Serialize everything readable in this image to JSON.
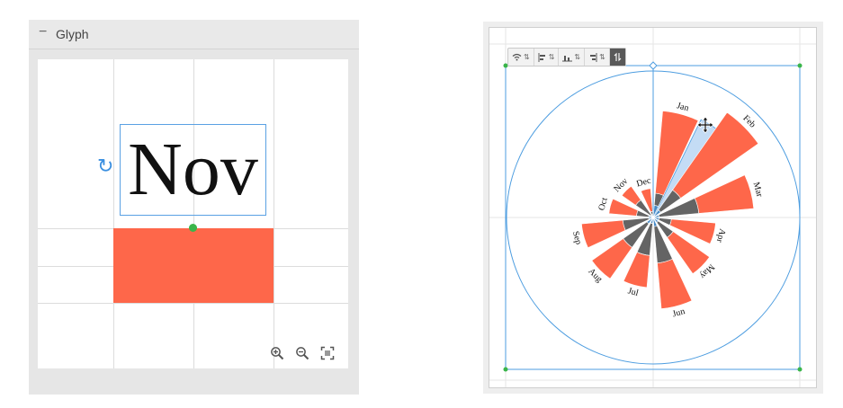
{
  "glyph_panel": {
    "collapse_symbol": "−",
    "title": "Glyph",
    "glyph_text": "Nov",
    "rect_color": "#fe674a",
    "icons": [
      "rotate-icon",
      "zoom-in-icon",
      "zoom-out-icon",
      "fit-to-screen-icon"
    ]
  },
  "toolbar": {
    "icons": [
      "wifi-icon",
      "align-left-icon",
      "align-bottom-icon",
      "align-right-icon",
      "swap-vertical-icon"
    ],
    "caret": "⇅"
  },
  "chart_data": {
    "type": "radial-bar",
    "categories": [
      "Jan",
      "Feb",
      "Mar",
      "Apr",
      "May",
      "Jun",
      "Jul",
      "Aug",
      "Sep",
      "Oct",
      "Nov",
      "Dec"
    ],
    "series": [
      {
        "values": [
          8,
          6,
          4,
          4,
          4,
          6,
          4,
          5,
          3,
          3,
          2,
          2
        ]
      },
      {
        "values": [
          16,
          22,
          30,
          12,
          16,
          30,
          25,
          24,
          20,
          11,
          14,
          4
        ]
      },
      {
        "values": [
          70,
          84,
          66,
          41,
          45,
          60,
          46,
          49,
          47,
          29,
          25,
          19
        ]
      }
    ],
    "colors": [
      "#4589c6",
      "#646464",
      "#fe674a"
    ],
    "highlight_category": "Jan"
  }
}
